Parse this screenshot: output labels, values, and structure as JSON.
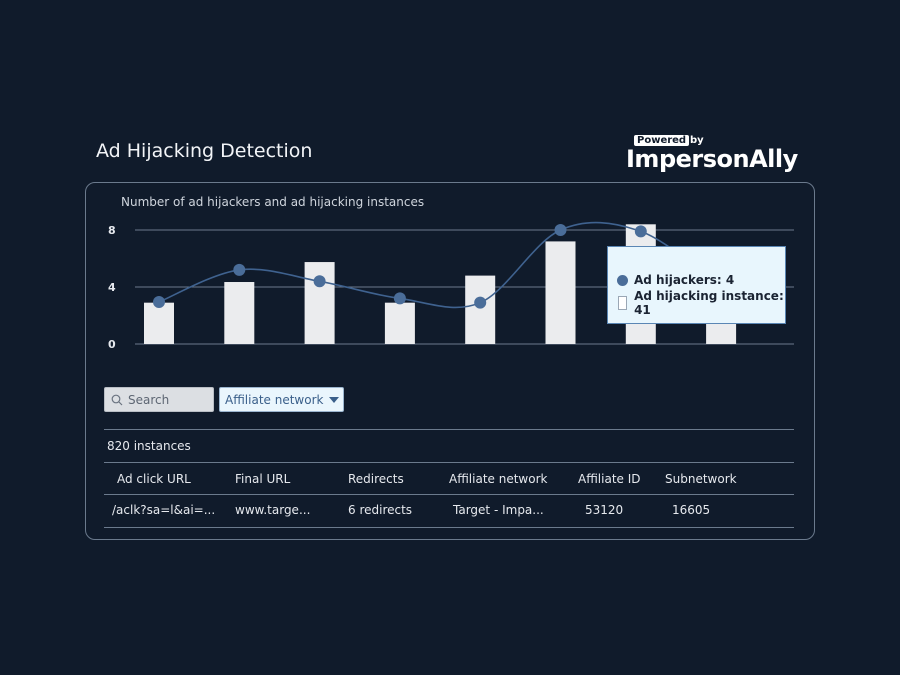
{
  "header": {
    "title": "Ad Hijacking Detection"
  },
  "logo": {
    "powered": "Powered",
    "by": "by",
    "brand": "ImpersonAlly"
  },
  "chart_data": {
    "type": "bar+line",
    "title": "Number of ad hijackers and ad hijacking instances",
    "ylim": [
      0,
      9
    ],
    "yticks": [
      "0",
      "4",
      "8"
    ],
    "grid": true,
    "series": [
      {
        "name": "Ad hijacking instance",
        "type": "bar",
        "values": [
          2.9,
          4.35,
          5.75,
          2.9,
          4.8,
          7.2,
          8.4,
          5.5
        ]
      },
      {
        "name": "Ad hijackers",
        "type": "line",
        "values": [
          2.95,
          5.2,
          4.4,
          3.2,
          2.9,
          8.0,
          7.9,
          4
        ]
      }
    ],
    "colors": {
      "bar": "#ebecee",
      "line": "#3f628f",
      "dot": "#4a6d99",
      "grid": "#6b7a8d"
    }
  },
  "tooltip": {
    "hijackers": "Ad hijackers: 4",
    "instances": "Ad hijacking instance: 41"
  },
  "filters": {
    "search_placeholder": "Search",
    "dropdown": "Affiliate network"
  },
  "table": {
    "count": "820 instances",
    "headers": [
      "Ad click URL",
      "Final URL",
      "Redirects",
      "Affiliate network",
      "Affiliate ID",
      "Subnetwork"
    ],
    "rows": [
      [
        "/aclk?sa=l&ai=...",
        "www.targe...",
        "6 redirects",
        "Target  - Impa...",
        "53120",
        "16605"
      ]
    ]
  }
}
